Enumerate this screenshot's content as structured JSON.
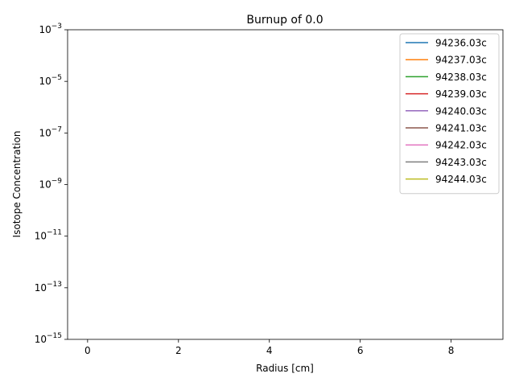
{
  "chart_data": {
    "type": "line",
    "title": "Burnup of 0.0",
    "xlabel": "Radius [cm]",
    "ylabel": "Isotope Concentration",
    "xlim": [
      -0.44,
      9.14
    ],
    "ylim": [
      1e-15,
      0.001
    ],
    "yscale": "log",
    "x_ticks": [
      0,
      2,
      4,
      6,
      8
    ],
    "y_tick_exponents": [
      -15,
      -13,
      -11,
      -9,
      -7,
      -5,
      -3
    ],
    "y_tick_base": "10",
    "grid": false,
    "legend_position": "upper-right",
    "series": [
      {
        "name": "94236.03c",
        "color": "#1f77b4",
        "x": [],
        "values": []
      },
      {
        "name": "94237.03c",
        "color": "#ff7f0e",
        "x": [],
        "values": []
      },
      {
        "name": "94238.03c",
        "color": "#2ca02c",
        "x": [],
        "values": []
      },
      {
        "name": "94239.03c",
        "color": "#d62728",
        "x": [],
        "values": []
      },
      {
        "name": "94240.03c",
        "color": "#9467bd",
        "x": [],
        "values": []
      },
      {
        "name": "94241.03c",
        "color": "#8c564b",
        "x": [],
        "values": []
      },
      {
        "name": "94242.03c",
        "color": "#e377c2",
        "x": [],
        "values": []
      },
      {
        "name": "94243.03c",
        "color": "#7f7f7f",
        "x": [],
        "values": []
      },
      {
        "name": "94244.03c",
        "color": "#bcbd22",
        "x": [],
        "values": []
      }
    ]
  }
}
